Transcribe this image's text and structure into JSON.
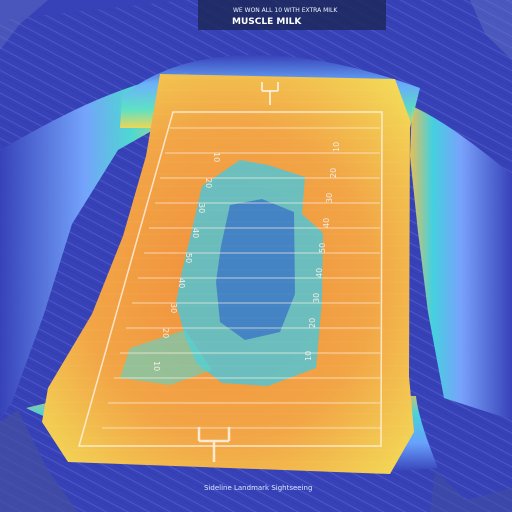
{
  "scene": {
    "subject": "stadium",
    "palette": {
      "outer_blue": "#3742b9",
      "light_blue": "#78a6ff",
      "cyan": "#38dbe7",
      "green": "#72e67c",
      "yellow": "#f0e24f",
      "orange": "#f08e3c",
      "red": "#e84d2e"
    }
  },
  "signage": {
    "top_banner": "MUSCLE MILK",
    "top_small": "WE WON ALL 10 WITH EXTRA MILK",
    "bottom_credit": "Sideline Landmark Sightseeing"
  },
  "yard_numbers": {
    "left": [
      "10",
      "20",
      "30",
      "40",
      "50",
      "40",
      "30",
      "20",
      "10"
    ],
    "right": [
      "10",
      "20",
      "30",
      "40",
      "50",
      "40",
      "30",
      "20",
      "10"
    ]
  }
}
